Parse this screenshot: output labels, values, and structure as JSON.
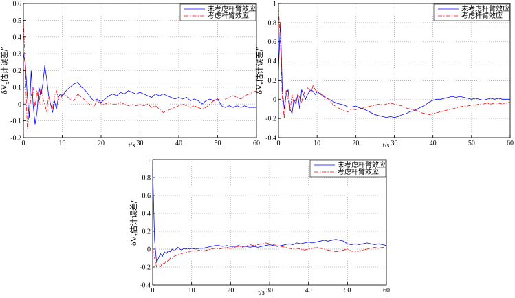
{
  "chart_data": [
    {
      "type": "line",
      "legend": "upper right",
      "grid": true,
      "xlabel": "t/s",
      "ylabel": {
        "symbol": "δV",
        "subscript": "x",
        "text": "估计误差/′"
      },
      "xlim": [
        0,
        60
      ],
      "xticks": [
        0,
        10,
        20,
        30,
        40,
        50,
        60
      ],
      "ylim": [
        -0.2,
        0.6
      ],
      "yticks": [
        -0.2,
        -0.1,
        0,
        0.1,
        0.2,
        0.3,
        0.4,
        0.5,
        0.6
      ],
      "x": [
        0,
        0.5,
        1,
        1.5,
        2,
        2.5,
        3,
        3.5,
        4,
        4.5,
        5,
        5.5,
        6,
        6.5,
        7,
        7.5,
        8,
        8.5,
        9,
        9.5,
        10,
        11,
        12,
        13,
        14,
        15,
        16,
        17,
        18,
        19,
        20,
        21,
        22,
        23,
        24,
        25,
        26,
        27,
        28,
        29,
        30,
        31,
        32,
        33,
        34,
        35,
        36,
        37,
        38,
        39,
        40,
        41,
        42,
        43,
        44,
        45,
        46,
        47,
        48,
        49,
        50,
        51,
        52,
        53,
        54,
        55,
        56,
        57,
        58,
        59,
        60
      ],
      "series": [
        {
          "name": "未考虑杆臂效应",
          "color": "#0000ff",
          "linestyle": "solid",
          "values": [
            0.3,
            0.24,
            0.05,
            -0.08,
            0.2,
            0.0,
            -0.12,
            -0.05,
            0.1,
            0.05,
            0.12,
            0.23,
            0.15,
            0.05,
            0.0,
            -0.05,
            0.02,
            -0.03,
            0.04,
            0.06,
            0.05,
            0.08,
            0.1,
            0.12,
            0.13,
            0.1,
            0.08,
            0.05,
            0.02,
            0.03,
            0.01,
            0.03,
            0.05,
            0.06,
            0.05,
            0.07,
            0.06,
            0.08,
            0.07,
            0.06,
            0.07,
            0.06,
            0.05,
            0.04,
            0.06,
            0.05,
            0.06,
            0.05,
            0.04,
            0.03,
            0.04,
            0.03,
            0.04,
            0.02,
            0.03,
            0.02,
            0.0,
            0.02,
            0.03,
            0.02,
            0.03,
            -0.01,
            -0.02,
            -0.01,
            -0.02,
            -0.01,
            -0.02,
            -0.01,
            -0.02,
            -0.02,
            -0.02
          ]
        },
        {
          "name": "考虑杆臂效应",
          "color": "#ff0000",
          "linestyle": "dashdot",
          "values": [
            0.5,
            0.2,
            -0.15,
            -0.05,
            0.05,
            0.1,
            -0.02,
            0.08,
            0.0,
            0.1,
            0.03,
            0.0,
            -0.05,
            0.05,
            0.0,
            -0.03,
            0.05,
            0.08,
            0.03,
            0.02,
            0.06,
            0.05,
            0.03,
            0.02,
            0.06,
            0.04,
            0.02,
            0.0,
            -0.02,
            0.02,
            0.0,
            0.0,
            0.01,
            0.0,
            0.0,
            0.01,
            0.0,
            -0.01,
            0.0,
            -0.01,
            0.0,
            -0.01,
            0.0,
            -0.02,
            -0.01,
            -0.03,
            -0.05,
            -0.04,
            -0.03,
            -0.02,
            -0.01,
            0.0,
            -0.01,
            -0.02,
            -0.01,
            -0.02,
            -0.03,
            -0.02,
            0.0,
            0.02,
            0.03,
            0.02,
            0.03,
            0.04,
            0.05,
            0.04,
            0.03,
            0.05,
            0.06,
            0.07,
            0.08
          ]
        }
      ]
    },
    {
      "type": "line",
      "legend": "upper right",
      "grid": true,
      "xlabel": "t/s",
      "ylabel": {
        "symbol": "δV",
        "subscript": "y",
        "text": "估计误差/′"
      },
      "xlim": [
        0,
        60
      ],
      "xticks": [
        0,
        10,
        20,
        30,
        40,
        50,
        60
      ],
      "ylim": [
        -0.4,
        1
      ],
      "yticks": [
        -0.4,
        -0.2,
        0,
        0.2,
        0.4,
        0.6,
        0.8,
        1
      ],
      "x": [
        0,
        0.5,
        1,
        1.5,
        2,
        2.5,
        3,
        3.5,
        4,
        4.5,
        5,
        5.5,
        6,
        6.5,
        7,
        7.5,
        8,
        8.5,
        9,
        9.5,
        10,
        11,
        12,
        13,
        14,
        15,
        16,
        17,
        18,
        19,
        20,
        21,
        22,
        23,
        24,
        25,
        26,
        27,
        28,
        29,
        30,
        31,
        32,
        33,
        34,
        35,
        36,
        37,
        38,
        39,
        40,
        41,
        42,
        43,
        44,
        45,
        46,
        47,
        48,
        49,
        50,
        51,
        52,
        53,
        54,
        55,
        56,
        57,
        58,
        59,
        60
      ],
      "series": [
        {
          "name": "未考虑杆臂效应",
          "color": "#0000ff",
          "linestyle": "solid",
          "values": [
            0.3,
            0.8,
            0.1,
            -0.1,
            0.05,
            0.1,
            -0.1,
            -0.15,
            0.0,
            -0.05,
            0.05,
            -0.1,
            0.1,
            0.05,
            0.0,
            0.05,
            0.08,
            0.1,
            0.08,
            0.05,
            0.08,
            0.05,
            0.02,
            0.0,
            -0.02,
            -0.04,
            -0.05,
            -0.06,
            -0.08,
            -0.08,
            -0.07,
            -0.09,
            -0.1,
            -0.12,
            -0.14,
            -0.16,
            -0.17,
            -0.18,
            -0.19,
            -0.18,
            -0.19,
            -0.18,
            -0.16,
            -0.15,
            -0.13,
            -0.12,
            -0.1,
            -0.08,
            -0.06,
            -0.03,
            -0.01,
            0.0,
            0.0,
            0.01,
            0.02,
            0.03,
            0.02,
            0.03,
            0.02,
            0.01,
            0.0,
            0.01,
            0.0,
            -0.01,
            0.0,
            0.01,
            0.0,
            0.01,
            0.0,
            0.0,
            0.0
          ]
        },
        {
          "name": "考虑杆臂效应",
          "color": "#ff0000",
          "linestyle": "dashdot",
          "values": [
            0.95,
            0.6,
            0.0,
            -0.2,
            0.1,
            0.0,
            -0.12,
            0.05,
            -0.05,
            0.0,
            0.05,
            0.02,
            -0.03,
            0.05,
            0.1,
            0.12,
            0.1,
            0.08,
            0.15,
            0.1,
            0.08,
            0.06,
            0.03,
            0.0,
            -0.05,
            -0.08,
            -0.1,
            -0.12,
            -0.13,
            -0.1,
            -0.11,
            -0.1,
            -0.09,
            -0.08,
            -0.07,
            -0.06,
            -0.05,
            -0.06,
            -0.05,
            -0.04,
            -0.05,
            -0.06,
            -0.07,
            -0.09,
            -0.1,
            -0.11,
            -0.12,
            -0.14,
            -0.15,
            -0.16,
            -0.15,
            -0.14,
            -0.13,
            -0.12,
            -0.11,
            -0.1,
            -0.09,
            -0.08,
            -0.07,
            -0.07,
            -0.06,
            -0.06,
            -0.05,
            -0.05,
            -0.04,
            -0.05,
            -0.04,
            -0.04,
            -0.05,
            -0.04,
            -0.03
          ]
        }
      ]
    },
    {
      "type": "line",
      "legend": "upper right",
      "grid": true,
      "xlabel": "t/s",
      "ylabel": {
        "symbol": "δV",
        "subscript": "z",
        "text": "估计误差/′"
      },
      "xlim": [
        0,
        60
      ],
      "xticks": [
        0,
        10,
        20,
        30,
        40,
        50,
        60
      ],
      "ylim": [
        -0.4,
        1
      ],
      "yticks": [
        -0.4,
        -0.2,
        0,
        0.2,
        0.4,
        0.6,
        0.8,
        1
      ],
      "x": [
        0,
        0.5,
        1,
        1.5,
        2,
        2.5,
        3,
        3.5,
        4,
        4.5,
        5,
        5.5,
        6,
        6.5,
        7,
        7.5,
        8,
        8.5,
        9,
        9.5,
        10,
        11,
        12,
        13,
        14,
        15,
        16,
        17,
        18,
        19,
        20,
        21,
        22,
        23,
        24,
        25,
        26,
        27,
        28,
        29,
        30,
        31,
        32,
        33,
        34,
        35,
        36,
        37,
        38,
        39,
        40,
        41,
        42,
        43,
        44,
        45,
        46,
        47,
        48,
        49,
        50,
        51,
        52,
        53,
        54,
        55,
        56,
        57,
        58,
        59,
        60
      ],
      "series": [
        {
          "name": "未考虑杆臂效应",
          "color": "#0000ff",
          "linestyle": "solid",
          "values": [
            0.9,
            0.1,
            -0.15,
            -0.1,
            -0.05,
            -0.08,
            -0.03,
            -0.05,
            -0.02,
            -0.03,
            0.0,
            -0.02,
            0.0,
            0.02,
            0.0,
            -0.01,
            0.01,
            0.0,
            0.01,
            0.0,
            0.01,
            0.0,
            0.01,
            0.01,
            0.02,
            0.03,
            0.04,
            0.04,
            0.03,
            0.04,
            0.03,
            0.03,
            0.04,
            0.03,
            0.03,
            0.02,
            0.03,
            0.02,
            0.03,
            0.04,
            0.05,
            0.04,
            0.03,
            0.04,
            0.05,
            0.06,
            0.05,
            0.07,
            0.06,
            0.07,
            0.08,
            0.07,
            0.08,
            0.09,
            0.1,
            0.09,
            0.1,
            0.11,
            0.1,
            0.09,
            0.06,
            0.05,
            0.06,
            0.05,
            0.06,
            0.07,
            0.06,
            0.05,
            0.06,
            0.05,
            0.04
          ]
        },
        {
          "name": "考虑杆臂效应",
          "color": "#ff0000",
          "linestyle": "dashdot",
          "values": [
            0.0,
            -0.1,
            -0.2,
            -0.18,
            -0.2,
            -0.15,
            -0.17,
            -0.12,
            -0.14,
            -0.1,
            -0.11,
            -0.08,
            -0.07,
            -0.06,
            -0.05,
            -0.05,
            -0.04,
            -0.04,
            -0.03,
            -0.03,
            -0.02,
            -0.02,
            -0.01,
            -0.02,
            -0.01,
            0.0,
            0.01,
            0.0,
            0.01,
            0.02,
            0.01,
            0.02,
            0.03,
            0.02,
            0.04,
            0.05,
            0.04,
            0.05,
            0.06,
            0.07,
            0.06,
            0.05,
            0.04,
            0.03,
            0.02,
            0.01,
            0.0,
            0.01,
            0.0,
            -0.01,
            0.0,
            0.01,
            0.02,
            0.01,
            0.0,
            -0.01,
            -0.02,
            -0.03,
            -0.02,
            -0.01,
            0.0,
            -0.02,
            -0.03,
            -0.02,
            -0.01,
            0.0,
            0.01,
            0.02,
            0.01,
            0.02,
            0.02
          ]
        }
      ]
    }
  ]
}
